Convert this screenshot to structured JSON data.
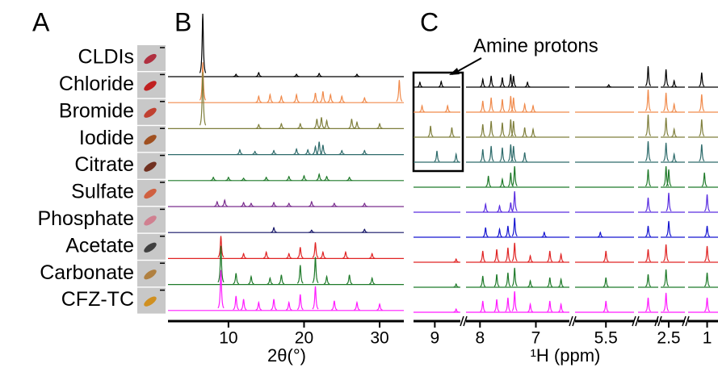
{
  "panel_a": {
    "label": "A",
    "samples": [
      "CLDIs",
      "Chloride",
      "Bromide",
      "Iodide",
      "Citrate",
      "Sulfate",
      "Phosphate",
      "Acetate",
      "Carbonate",
      "CFZ-TC"
    ]
  },
  "chart_data": [
    {
      "type": "xrd",
      "label": "B",
      "xlabel": "2θ(°)",
      "xlim": [
        2,
        33.2
      ],
      "xticks": [
        10,
        20,
        30
      ],
      "series": [
        {
          "color": "#000000",
          "peaks": [
            [
              6.6,
              78
            ],
            [
              11,
              3
            ],
            [
              14,
              5
            ],
            [
              19,
              3
            ],
            [
              22,
              4
            ],
            [
              27,
              3
            ]
          ]
        },
        {
          "color": "#f08a4b",
          "peaks": [
            [
              6.6,
              50
            ],
            [
              14,
              8
            ],
            [
              15.5,
              10
            ],
            [
              17,
              8
            ],
            [
              19,
              10
            ],
            [
              21.5,
              12
            ],
            [
              22.5,
              14
            ],
            [
              23.5,
              10
            ],
            [
              25,
              8
            ],
            [
              28,
              6
            ],
            [
              32.6,
              28
            ]
          ]
        },
        {
          "color": "#7f7f3c",
          "peaks": [
            [
              6.6,
              70
            ],
            [
              14,
              5
            ],
            [
              17,
              6
            ],
            [
              19.5,
              6
            ],
            [
              21.7,
              12
            ],
            [
              22.3,
              14
            ],
            [
              23,
              10
            ],
            [
              26.3,
              12
            ],
            [
              27,
              8
            ],
            [
              30,
              6
            ]
          ]
        },
        {
          "color": "#2e6b6b",
          "peaks": [
            [
              11.5,
              6
            ],
            [
              13.5,
              4
            ],
            [
              16,
              5
            ],
            [
              19,
              7
            ],
            [
              20.5,
              6
            ],
            [
              21.5,
              10
            ],
            [
              22,
              16
            ],
            [
              22.5,
              12
            ],
            [
              25,
              5
            ],
            [
              28,
              5
            ]
          ]
        },
        {
          "color": "#1f7a2a",
          "peaks": [
            [
              8,
              4
            ],
            [
              10,
              4
            ],
            [
              12,
              3
            ],
            [
              15,
              4
            ],
            [
              18,
              5
            ],
            [
              20,
              6
            ],
            [
              22,
              8
            ],
            [
              23,
              5
            ],
            [
              26,
              4
            ]
          ]
        },
        {
          "color": "#7a2e8e",
          "peaks": [
            [
              8.5,
              6
            ],
            [
              9.5,
              8
            ],
            [
              12,
              5
            ],
            [
              13,
              4
            ],
            [
              16,
              5
            ],
            [
              18,
              4
            ],
            [
              21,
              6
            ],
            [
              24,
              4
            ],
            [
              28,
              4
            ]
          ]
        },
        {
          "color": "#141466",
          "peaks": [
            [
              16,
              6
            ],
            [
              21,
              3
            ],
            [
              28,
              4
            ]
          ]
        },
        {
          "color": "#e02424",
          "peaks": [
            [
              9,
              28
            ],
            [
              12,
              6
            ],
            [
              15,
              8
            ],
            [
              18,
              6
            ],
            [
              19.5,
              14
            ],
            [
              21.5,
              20
            ],
            [
              22.5,
              8
            ],
            [
              25.5,
              8
            ],
            [
              29,
              6
            ]
          ]
        },
        {
          "color": "#1f7a2a",
          "peaks": [
            [
              9,
              48
            ],
            [
              11,
              14
            ],
            [
              13,
              10
            ],
            [
              15.5,
              8
            ],
            [
              17,
              12
            ],
            [
              19.5,
              24
            ],
            [
              21.5,
              34
            ],
            [
              23,
              10
            ],
            [
              26,
              12
            ],
            [
              29,
              8
            ]
          ]
        },
        {
          "color": "#ff1aff",
          "peaks": [
            [
              9,
              50
            ],
            [
              11,
              18
            ],
            [
              12,
              14
            ],
            [
              14,
              10
            ],
            [
              16,
              14
            ],
            [
              18,
              10
            ],
            [
              19.5,
              20
            ],
            [
              21.5,
              30
            ],
            [
              24,
              12
            ],
            [
              27,
              10
            ],
            [
              30,
              8
            ]
          ]
        }
      ]
    },
    {
      "type": "nmr",
      "label": "C",
      "xlabel": "¹H (ppm)",
      "annotation": "Amine protons",
      "segments": [
        {
          "xlim": [
            9.5,
            8.4
          ],
          "xticks": [
            9
          ]
        },
        {
          "xlim": [
            8.25,
            6.4
          ],
          "xticks": [
            8,
            7
          ]
        },
        {
          "xlim": [
            6.05,
            5.0
          ],
          "xticks": [
            5.5
          ]
        },
        {
          "xlim": [
            3.5,
            3.1
          ],
          "xticks": []
        },
        {
          "xlim": [
            2.65,
            2.2
          ],
          "xticks": [
            2.5
          ]
        },
        {
          "xlim": [
            1.35,
            0.8
          ],
          "xticks": [
            1
          ]
        }
      ],
      "series": [
        {
          "color": "#000000",
          "peaks": [
            [
              9.35,
              6
            ],
            [
              8.85,
              7
            ],
            [
              7.95,
              10
            ],
            [
              7.8,
              14
            ],
            [
              7.6,
              12
            ],
            [
              7.45,
              16
            ],
            [
              7.4,
              14
            ],
            [
              7.15,
              6
            ],
            [
              5.45,
              3
            ],
            [
              3.3,
              26
            ],
            [
              2.55,
              22
            ],
            [
              2.4,
              8
            ],
            [
              1.1,
              18
            ]
          ]
        },
        {
          "color": "#f08a4b",
          "peaks": [
            [
              9.3,
              8
            ],
            [
              8.7,
              8
            ],
            [
              7.95,
              14
            ],
            [
              7.8,
              18
            ],
            [
              7.6,
              16
            ],
            [
              7.45,
              20
            ],
            [
              7.4,
              18
            ],
            [
              7.2,
              10
            ],
            [
              7.05,
              8
            ],
            [
              3.3,
              28
            ],
            [
              2.55,
              24
            ],
            [
              2.4,
              10
            ],
            [
              1.1,
              22
            ]
          ]
        },
        {
          "color": "#7f7f3c",
          "peaks": [
            [
              9.1,
              14
            ],
            [
              8.6,
              12
            ],
            [
              7.95,
              16
            ],
            [
              7.8,
              20
            ],
            [
              7.6,
              18
            ],
            [
              7.45,
              22
            ],
            [
              7.4,
              20
            ],
            [
              7.2,
              12
            ],
            [
              7.05,
              10
            ],
            [
              3.3,
              28
            ],
            [
              2.55,
              24
            ],
            [
              2.4,
              10
            ],
            [
              1.1,
              22
            ]
          ]
        },
        {
          "color": "#2e6b6b",
          "peaks": [
            [
              8.95,
              14
            ],
            [
              8.5,
              10
            ],
            [
              7.95,
              16
            ],
            [
              7.8,
              20
            ],
            [
              7.6,
              18
            ],
            [
              7.45,
              22
            ],
            [
              7.4,
              20
            ],
            [
              7.2,
              12
            ],
            [
              3.3,
              26
            ],
            [
              2.55,
              24
            ],
            [
              2.4,
              10
            ],
            [
              1.1,
              22
            ]
          ]
        },
        {
          "color": "#1f7a2a",
          "peaks": [
            [
              7.85,
              14
            ],
            [
              7.6,
              10
            ],
            [
              7.45,
              18
            ],
            [
              7.38,
              26
            ],
            [
              3.3,
              22
            ],
            [
              2.55,
              26
            ],
            [
              2.5,
              22
            ],
            [
              1.05,
              18
            ]
          ]
        },
        {
          "color": "#5a2ee0",
          "peaks": [
            [
              7.9,
              10
            ],
            [
              7.65,
              8
            ],
            [
              7.45,
              12
            ],
            [
              7.38,
              26
            ],
            [
              3.3,
              18
            ],
            [
              2.5,
              24
            ],
            [
              1.0,
              22
            ]
          ]
        },
        {
          "color": "#1414d0",
          "peaks": [
            [
              7.9,
              12
            ],
            [
              7.65,
              10
            ],
            [
              7.5,
              14
            ],
            [
              7.38,
              24
            ],
            [
              6.85,
              6
            ],
            [
              5.6,
              6
            ],
            [
              3.3,
              14
            ],
            [
              2.5,
              20
            ],
            [
              1.0,
              14
            ]
          ]
        },
        {
          "color": "#e02424",
          "peaks": [
            [
              8.5,
              4
            ],
            [
              7.95,
              14
            ],
            [
              7.7,
              16
            ],
            [
              7.5,
              18
            ],
            [
              7.38,
              24
            ],
            [
              7.1,
              8
            ],
            [
              6.75,
              14
            ],
            [
              6.55,
              10
            ],
            [
              5.5,
              14
            ],
            [
              3.3,
              16
            ],
            [
              2.55,
              22
            ],
            [
              1.0,
              20
            ]
          ]
        },
        {
          "color": "#1f7a2a",
          "peaks": [
            [
              8.5,
              4
            ],
            [
              7.95,
              14
            ],
            [
              7.7,
              16
            ],
            [
              7.5,
              18
            ],
            [
              7.38,
              24
            ],
            [
              7.1,
              8
            ],
            [
              6.75,
              12
            ],
            [
              6.55,
              10
            ],
            [
              5.5,
              12
            ],
            [
              3.3,
              16
            ],
            [
              2.55,
              22
            ],
            [
              1.0,
              18
            ]
          ]
        },
        {
          "color": "#ff1aff",
          "peaks": [
            [
              8.5,
              4
            ],
            [
              7.95,
              14
            ],
            [
              7.7,
              16
            ],
            [
              7.5,
              18
            ],
            [
              7.38,
              26
            ],
            [
              7.1,
              10
            ],
            [
              6.75,
              14
            ],
            [
              6.55,
              10
            ],
            [
              5.5,
              14
            ],
            [
              3.3,
              18
            ],
            [
              2.55,
              24
            ],
            [
              1.0,
              18
            ]
          ]
        }
      ]
    }
  ]
}
